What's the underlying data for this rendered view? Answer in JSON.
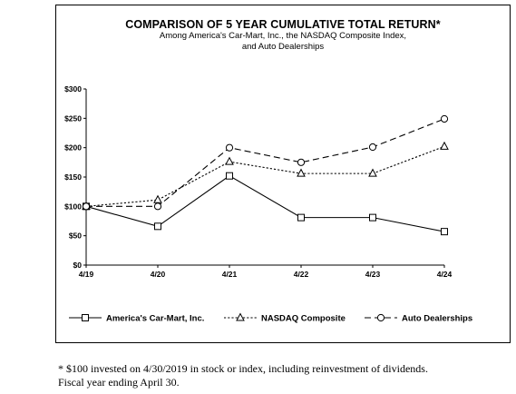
{
  "chart_data": {
    "type": "line",
    "title": "COMPARISON OF 5 YEAR CUMULATIVE TOTAL RETURN*",
    "subtitle_lines": [
      "Among America's Car-Mart, Inc., the NASDAQ Composite Index,",
      "and Auto Dealerships"
    ],
    "categories": [
      "4/19",
      "4/20",
      "4/21",
      "4/22",
      "4/23",
      "4/24"
    ],
    "y_ticks": [
      "$0",
      "$50",
      "$100",
      "$150",
      "$200",
      "$250",
      "$300"
    ],
    "ylim": [
      0,
      300
    ],
    "grid": false,
    "legend_position": "bottom",
    "series": [
      {
        "name": "America's Car-Mart, Inc.",
        "values": [
          100,
          66,
          152,
          81,
          81,
          57
        ],
        "marker": "square",
        "dash": "solid"
      },
      {
        "name": "NASDAQ Composite",
        "values": [
          100,
          111,
          176,
          156,
          156,
          202
        ],
        "marker": "triangle",
        "dash": "dotted"
      },
      {
        "name": "Auto Dealerships",
        "values": [
          100,
          100,
          200,
          175,
          201,
          249
        ],
        "marker": "circle",
        "dash": "dashed"
      }
    ]
  },
  "footnote_lines": [
    "* $100 invested on 4/30/2019 in stock or index, including reinvestment of dividends.",
    "Fiscal year ending April 30."
  ]
}
